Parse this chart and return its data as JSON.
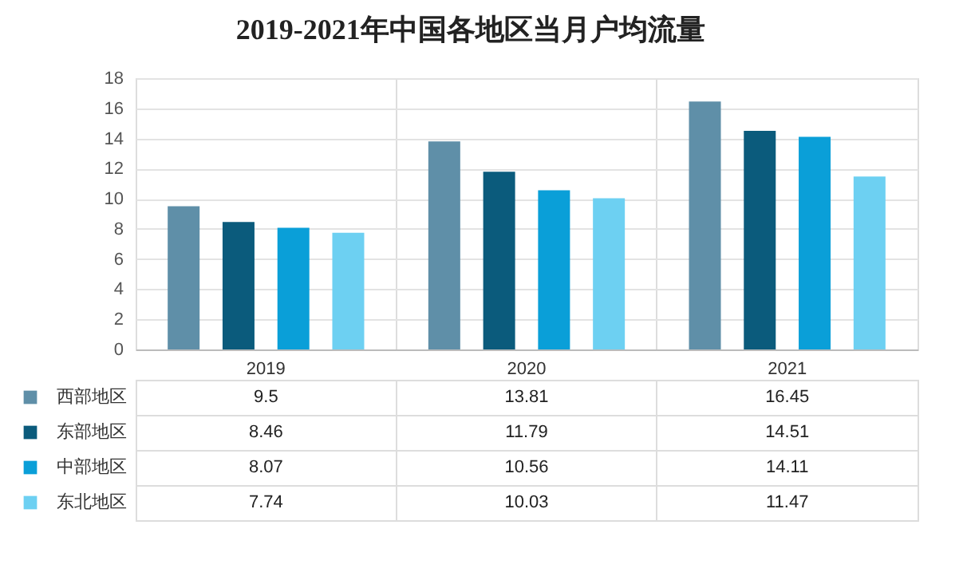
{
  "chart_data": {
    "type": "bar",
    "title": "2019-2021年中国各地区当月户均流量",
    "categories": [
      "2019",
      "2020",
      "2021"
    ],
    "series": [
      {
        "name": "西部地区",
        "color": "#5f8fa8",
        "values": [
          9.5,
          13.81,
          16.45
        ]
      },
      {
        "name": "东部地区",
        "color": "#0b5b7c",
        "values": [
          8.46,
          11.79,
          14.51
        ]
      },
      {
        "name": "中部地区",
        "color": "#0a9fd8",
        "values": [
          8.07,
          10.56,
          14.11
        ]
      },
      {
        "name": "东北地区",
        "color": "#6dd0f2",
        "values": [
          7.74,
          10.03,
          11.47
        ]
      }
    ],
    "ylim": [
      0,
      18
    ],
    "yticks": [
      0,
      2,
      4,
      6,
      8,
      10,
      12,
      14,
      16,
      18
    ],
    "grid": "y",
    "data_labels": true,
    "legend": "bottom left"
  }
}
